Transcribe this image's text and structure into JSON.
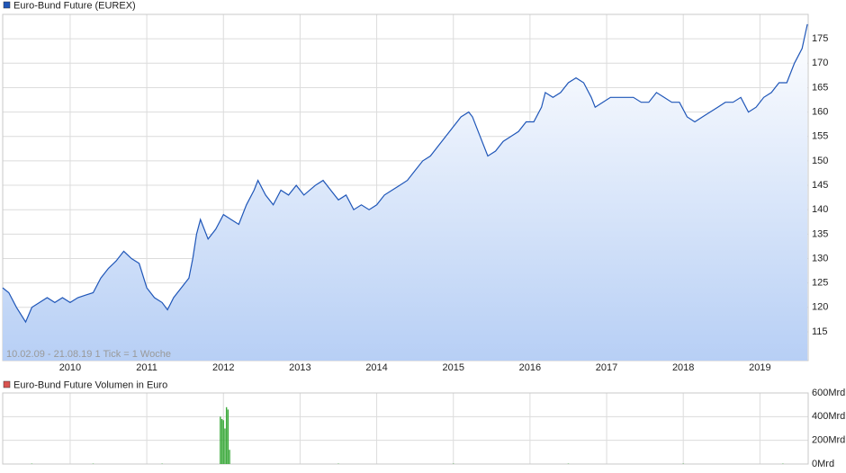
{
  "chart_data": [
    {
      "type": "area",
      "annotation": "10.02.09 - 21.08.19   1 Tick = 1 Woche",
      "x": [
        2009.12,
        2009.2,
        2009.3,
        2009.42,
        2009.5,
        2009.6,
        2009.7,
        2009.8,
        2009.9,
        2010.0,
        2010.1,
        2010.2,
        2010.3,
        2010.4,
        2010.5,
        2010.6,
        2010.7,
        2010.8,
        2010.9,
        2011.0,
        2011.1,
        2011.2,
        2011.27,
        2011.35,
        2011.45,
        2011.55,
        2011.6,
        2011.65,
        2011.7,
        2011.8,
        2011.9,
        2012.0,
        2012.1,
        2012.2,
        2012.3,
        2012.4,
        2012.45,
        2012.55,
        2012.65,
        2012.75,
        2012.85,
        2012.95,
        2013.05,
        2013.2,
        2013.3,
        2013.4,
        2013.5,
        2013.6,
        2013.7,
        2013.8,
        2013.9,
        2014.0,
        2014.1,
        2014.2,
        2014.3,
        2014.4,
        2014.5,
        2014.6,
        2014.7,
        2014.8,
        2014.9,
        2015.0,
        2015.1,
        2015.2,
        2015.25,
        2015.35,
        2015.45,
        2015.55,
        2015.65,
        2015.75,
        2015.85,
        2015.95,
        2016.05,
        2016.15,
        2016.2,
        2016.3,
        2016.4,
        2016.5,
        2016.6,
        2016.7,
        2016.8,
        2016.85,
        2016.95,
        2017.05,
        2017.15,
        2017.25,
        2017.35,
        2017.45,
        2017.55,
        2017.65,
        2017.75,
        2017.85,
        2017.95,
        2018.05,
        2018.15,
        2018.25,
        2018.35,
        2018.45,
        2018.55,
        2018.65,
        2018.75,
        2018.85,
        2018.95,
        2019.05,
        2019.15,
        2019.25,
        2019.35,
        2019.45,
        2019.55,
        2019.62
      ],
      "series": [
        {
          "name": "Euro-Bund Future (EUREX)",
          "color": "#1f56b8",
          "values": [
            124,
            123,
            120,
            117,
            120,
            121,
            122,
            121,
            122,
            121,
            122,
            122.5,
            123,
            126,
            128,
            129.5,
            131.5,
            130,
            129,
            124,
            122,
            121,
            119.5,
            122,
            124,
            126,
            130,
            135,
            138,
            134,
            136,
            139,
            138,
            137,
            141,
            144,
            146,
            143,
            141,
            144,
            143,
            145,
            143,
            145,
            146,
            144,
            142,
            143,
            140,
            141,
            140,
            141,
            143,
            144,
            145,
            146,
            148,
            150,
            151,
            153,
            155,
            157,
            159,
            160,
            159,
            155,
            151,
            152,
            154,
            155,
            156,
            158,
            158,
            161,
            164,
            163,
            164,
            166,
            167,
            166,
            163,
            161,
            162,
            163,
            163,
            163,
            163,
            162,
            162,
            164,
            163,
            162,
            162,
            159,
            158,
            159,
            160,
            161,
            162,
            162,
            163,
            160,
            161,
            163,
            164,
            166,
            166,
            170,
            173,
            178
          ]
        }
      ],
      "xlim": [
        2009.12,
        2019.63
      ],
      "ylim": [
        109.1,
        180
      ],
      "xticks": [
        2010,
        2011,
        2012,
        2013,
        2014,
        2015,
        2016,
        2017,
        2018,
        2019
      ],
      "yticks": [
        115,
        120,
        125,
        130,
        135,
        140,
        145,
        150,
        155,
        160,
        165,
        170,
        175
      ],
      "grid": true
    },
    {
      "type": "bar",
      "x": [
        2009.5,
        2010.3,
        2011.2,
        2011.96,
        2011.98,
        2012.0,
        2012.02,
        2012.04,
        2012.06,
        2012.08,
        2013.5,
        2015.0,
        2016.5,
        2018.0,
        2019.3
      ],
      "series": [
        {
          "name": "Euro-Bund Future Volumen in Euro",
          "color": "#3aa93a",
          "legend_color": "#d9534f",
          "values": [
            3,
            3,
            3,
            400,
            380,
            370,
            300,
            480,
            460,
            120,
            3,
            3,
            3,
            3,
            3
          ]
        }
      ],
      "xlim": [
        2009.12,
        2019.63
      ],
      "ylim": [
        0,
        600
      ],
      "xticks": [
        2010,
        2011,
        2012,
        2013,
        2014,
        2015,
        2016,
        2017,
        2018,
        2019
      ],
      "yticks": [
        {
          "value": 0,
          "label": "0Mrd"
        },
        {
          "value": 200,
          "label": "200Mrd"
        },
        {
          "value": 400,
          "label": "400Mrd"
        },
        {
          "value": 600,
          "label": "600Mrd"
        }
      ],
      "grid": true
    }
  ]
}
